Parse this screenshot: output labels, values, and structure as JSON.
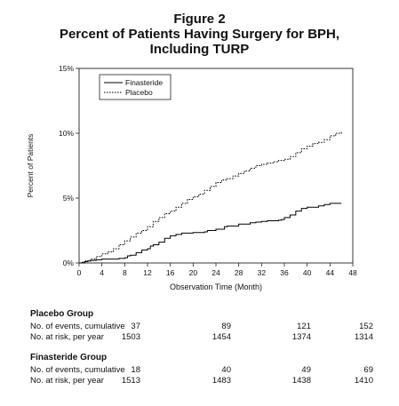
{
  "figure": {
    "label": "Figure 2",
    "title_line1": "Percent of Patients Having Surgery for BPH,",
    "title_line2": "Including TURP"
  },
  "chart_data": {
    "type": "line",
    "xlabel": "Observation Time (Month)",
    "ylabel": "Percent of Patients",
    "xlim": [
      0,
      48
    ],
    "ylim": [
      0,
      15
    ],
    "x_ticks": [
      "0",
      "4",
      "8",
      "12",
      "16",
      "20",
      "24",
      "28",
      "32",
      "36",
      "40",
      "44",
      "48"
    ],
    "y_ticks": [
      "0%",
      "5%",
      "10%",
      "15%"
    ],
    "grid": false,
    "legend_position": "top-left",
    "series": [
      {
        "name": "Finasteride",
        "style": "solid",
        "color": "#000000",
        "x": [
          0,
          0.5,
          1,
          1.5,
          2,
          3,
          4,
          5,
          6,
          7,
          8,
          8.5,
          9,
          10,
          11,
          12,
          12.5,
          13,
          14,
          15,
          16,
          17,
          18,
          20,
          22,
          22.5,
          24,
          25,
          25.5,
          26,
          28,
          29,
          30,
          31,
          32,
          33,
          35,
          35.5,
          36,
          37,
          38,
          39,
          40,
          42,
          43,
          44,
          46
        ],
        "y": [
          0,
          0.05,
          0.1,
          0.15,
          0.2,
          0.25,
          0.3,
          0.3,
          0.3,
          0.35,
          0.4,
          0.55,
          0.6,
          0.8,
          1.0,
          1.1,
          1.3,
          1.4,
          1.6,
          1.9,
          2.1,
          2.2,
          2.3,
          2.35,
          2.4,
          2.5,
          2.6,
          2.6,
          2.8,
          2.85,
          3.0,
          3.0,
          3.1,
          3.15,
          3.2,
          3.25,
          3.3,
          3.35,
          3.5,
          3.7,
          4.0,
          4.2,
          4.3,
          4.4,
          4.5,
          4.6,
          4.6
        ]
      },
      {
        "name": "Placebo",
        "style": "dashed",
        "color": "#000000",
        "x": [
          0,
          1,
          2,
          3,
          4,
          5,
          6,
          7,
          8,
          9,
          10,
          11,
          12,
          13,
          14,
          15,
          16,
          17,
          18,
          19,
          20,
          21,
          22,
          23,
          24,
          25,
          26,
          27,
          28,
          29,
          30,
          31,
          32,
          33,
          34,
          35,
          36,
          37,
          38,
          39,
          40,
          41,
          42,
          43,
          44,
          45,
          46
        ],
        "y": [
          0,
          0.15,
          0.3,
          0.5,
          0.7,
          0.85,
          1.1,
          1.4,
          1.7,
          2.0,
          2.3,
          2.5,
          2.8,
          3.2,
          3.5,
          3.8,
          4.0,
          4.3,
          4.6,
          4.9,
          5.1,
          5.3,
          5.6,
          5.9,
          6.2,
          6.4,
          6.5,
          6.7,
          6.9,
          7.1,
          7.3,
          7.5,
          7.6,
          7.7,
          7.8,
          7.9,
          8.0,
          8.2,
          8.5,
          8.8,
          9.0,
          9.2,
          9.3,
          9.5,
          9.8,
          10.0,
          10.2
        ]
      }
    ]
  },
  "risk_table": {
    "groups": [
      {
        "name": "Placebo Group",
        "rows": [
          {
            "label": "No. of events, cumulative",
            "values": [
              "37",
              "89",
              "121",
              "152"
            ]
          },
          {
            "label": "No. at risk, per year",
            "values": [
              "1503",
              "1454",
              "1374",
              "1314"
            ]
          }
        ]
      },
      {
        "name": "Finasteride Group",
        "rows": [
          {
            "label": "No. of events, cumulative",
            "values": [
              "18",
              "40",
              "49",
              "69"
            ]
          },
          {
            "label": "No. at risk, per year",
            "values": [
              "1513",
              "1483",
              "1438",
              "1410"
            ]
          }
        ]
      }
    ]
  }
}
